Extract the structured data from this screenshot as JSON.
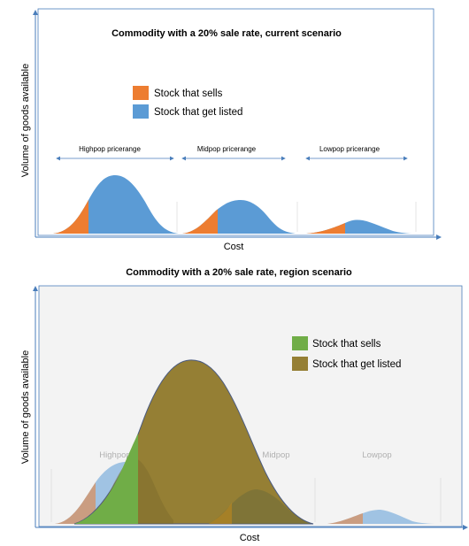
{
  "colors": {
    "sells_top": "#ed7d31",
    "listed_top": "#5b9bd5",
    "sells_bottom": "#70ad47",
    "listed_bottom": "#957f34",
    "axis": "#4a7ebb"
  },
  "top_diagram": {
    "title": "Commodity with a 20% sale rate, current scenario",
    "y_label": "Volume of goods available",
    "x_label": "Cost",
    "legend": [
      {
        "label": "Stock that sells",
        "color": "#ed7d31"
      },
      {
        "label": "Stock that get listed",
        "color": "#5b9bd5"
      }
    ],
    "ranges": [
      "Highpop pricerange",
      "Midpop pricerange",
      "Lowpop pricerange"
    ]
  },
  "bottom_diagram": {
    "title": "Commodity with a 20% sale rate, region scenario",
    "y_label": "Volume of goods available",
    "x_label": "Cost",
    "legend": [
      {
        "label": "Stock that sells",
        "color": "#70ad47"
      },
      {
        "label": "Stock that get listed",
        "color": "#957f34"
      }
    ],
    "pop_labels": [
      "Highpop",
      "Midpop",
      "Lowpop"
    ]
  }
}
